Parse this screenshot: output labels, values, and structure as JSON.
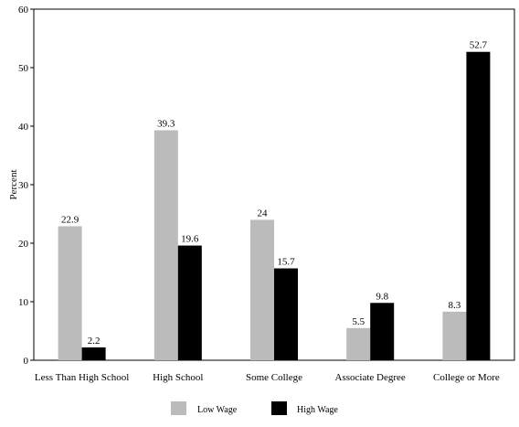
{
  "chart_data": {
    "type": "bar",
    "title": "",
    "xlabel": "",
    "ylabel": "Percent",
    "ylim": [
      0,
      60
    ],
    "yticks": [
      0,
      10,
      20,
      30,
      40,
      50,
      60
    ],
    "categories": [
      "Less Than High School",
      "High School",
      "Some College",
      "Associate Degree",
      "College or More"
    ],
    "series": [
      {
        "name": "Low Wage",
        "color": "#bbbbbb",
        "values": [
          22.9,
          39.3,
          24,
          5.5,
          8.3
        ],
        "labels": [
          "22.9",
          "39.3",
          "24",
          "5.5",
          "8.3"
        ]
      },
      {
        "name": "High Wage",
        "color": "#000000",
        "values": [
          2.2,
          19.6,
          15.7,
          9.8,
          52.7
        ],
        "labels": [
          "2.2",
          "19.6",
          "15.7",
          "9.8",
          "52.7"
        ]
      }
    ],
    "grid": false,
    "legend_position": "bottom"
  }
}
